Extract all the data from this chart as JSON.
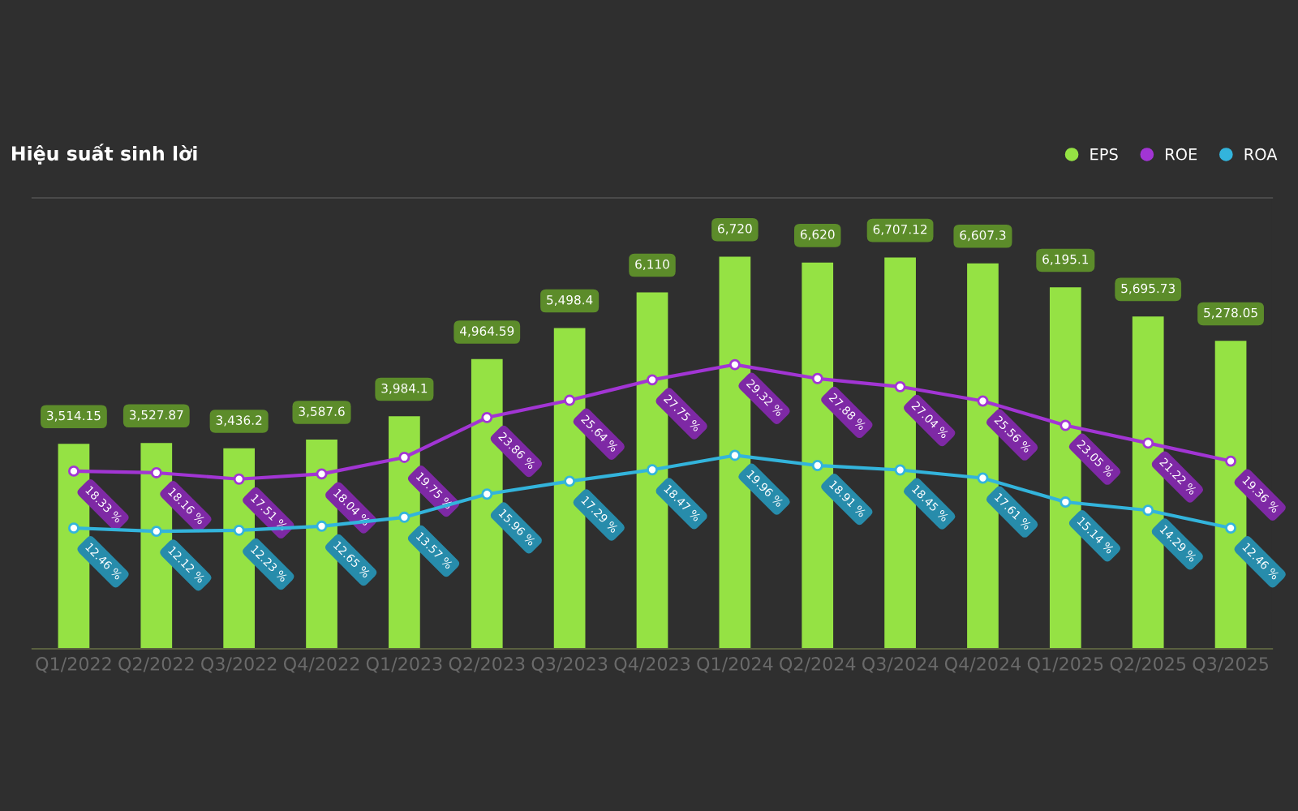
{
  "chart_data": {
    "type": "bar",
    "title": "Hiệu suất sinh lời",
    "categories": [
      "Q1/2022",
      "Q2/2022",
      "Q3/2022",
      "Q4/2022",
      "Q1/2023",
      "Q2/2023",
      "Q3/2023",
      "Q4/2023",
      "Q1/2024",
      "Q2/2024",
      "Q3/2024",
      "Q4/2024",
      "Q1/2025",
      "Q2/2025",
      "Q3/2025"
    ],
    "series": [
      {
        "name": "EPS",
        "color": "#95e244",
        "values": [
          3514.15,
          3527.87,
          3436.2,
          3587.6,
          3984.1,
          4964.59,
          5498.4,
          6110,
          6720,
          6620,
          6707.12,
          6607.3,
          6195.1,
          5695.73,
          5278.05
        ],
        "value_labels": [
          "3,514.15",
          "3,527.87",
          "3,436.2",
          "3,587.6",
          "3,984.1",
          "4,964.59",
          "5,498.4",
          "6,110",
          "6,720",
          "6,620",
          "6,707.12",
          "6,607.3",
          "6,195.1",
          "5,695.73",
          "5,278.05"
        ]
      },
      {
        "name": "ROE",
        "type": "line",
        "axis": "y2",
        "color": "#a235d4",
        "values": [
          18.33,
          18.16,
          17.51,
          18.04,
          19.75,
          23.86,
          25.64,
          27.75,
          29.32,
          27.88,
          27.04,
          25.56,
          23.05,
          21.22,
          19.36
        ],
        "value_labels": [
          "18.33 %",
          "18.16 %",
          "17.51 %",
          "18.04 %",
          "19.75 %",
          "23.86 %",
          "25.64 %",
          "27.75 %",
          "29.32 %",
          "27.88 %",
          "27.04 %",
          "25.56 %",
          "23.05 %",
          "21.22 %",
          "19.36 %"
        ]
      },
      {
        "name": "ROA",
        "type": "line",
        "axis": "y2",
        "color": "#33b4dc",
        "values": [
          12.46,
          12.12,
          12.23,
          12.65,
          13.57,
          15.96,
          17.29,
          18.47,
          19.96,
          18.91,
          18.45,
          17.61,
          15.14,
          14.29,
          12.46
        ],
        "value_labels": [
          "12.46 %",
          "12.12 %",
          "12.23 %",
          "12.65 %",
          "13.57 %",
          "15.96 %",
          "17.29 %",
          "18.47 %",
          "19.96 %",
          "18.91 %",
          "18.45 %",
          "17.61 %",
          "15.14 %",
          "14.29 %",
          "12.46 %"
        ]
      }
    ],
    "tick_labels": "x",
    "legend": "top right",
    "marker": "circle",
    "line_style": "solid"
  }
}
